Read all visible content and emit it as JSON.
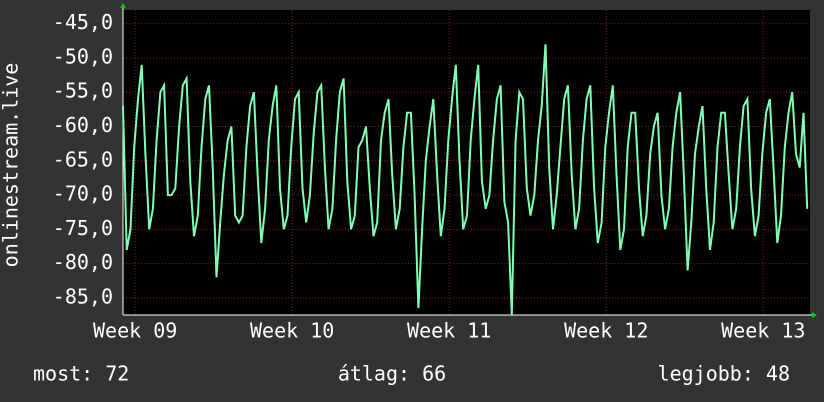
{
  "chart_data": {
    "type": "line",
    "y_label": "onlinestream.live",
    "x": [
      0,
      4,
      8,
      12,
      16,
      20,
      24,
      28,
      32,
      36,
      40,
      44,
      48,
      52,
      56,
      60,
      64,
      68,
      72,
      76,
      80,
      84,
      88,
      92,
      96,
      100,
      104,
      108,
      112,
      116,
      120,
      124,
      128,
      132,
      136,
      140,
      144,
      148,
      152,
      156,
      160,
      164,
      168,
      172,
      176,
      180,
      184,
      188,
      192,
      196,
      200,
      204,
      208,
      212,
      216,
      220,
      224,
      228,
      232,
      236,
      240,
      244,
      248,
      252,
      256,
      260,
      264,
      268,
      272,
      276,
      280,
      284,
      288,
      292,
      296,
      300,
      304,
      308,
      312,
      316,
      320,
      324,
      328,
      332,
      336,
      340,
      344,
      348,
      352,
      356,
      360,
      364,
      368,
      372,
      376,
      380,
      384,
      388,
      392,
      396,
      400,
      404,
      408,
      412,
      416,
      420,
      424,
      428,
      432,
      436,
      440,
      444,
      448,
      452,
      456,
      460,
      464,
      468,
      472,
      476,
      480,
      484,
      488,
      492,
      496,
      500,
      504,
      508,
      512,
      516,
      520,
      524,
      528,
      532,
      536,
      540,
      544,
      548,
      552,
      556,
      560,
      564,
      568,
      572,
      576,
      580,
      584,
      588,
      592,
      596,
      600,
      604,
      608,
      612,
      616,
      620,
      624,
      628,
      632,
      636,
      640,
      644,
      648,
      652,
      656,
      660,
      664,
      668,
      672,
      676,
      680,
      684,
      688,
      692,
      696,
      700,
      704,
      708,
      712,
      716,
      720,
      724,
      728,
      732
    ],
    "values": [
      -57,
      -78,
      -75,
      -63,
      -56,
      -51,
      -64,
      -75,
      -72,
      -62,
      -55,
      -54,
      -70,
      -70,
      -69,
      -60,
      -54,
      -53,
      -68,
      -76,
      -73,
      -63,
      -56,
      -54,
      -66,
      -82,
      -74,
      -67,
      -62,
      -60,
      -73,
      -74,
      -73,
      -63,
      -57,
      -55,
      -67,
      -77,
      -72,
      -62,
      -57,
      -54,
      -69,
      -75,
      -73,
      -63,
      -56,
      -55,
      -69,
      -74,
      -70,
      -61,
      -55,
      -54,
      -66,
      -75,
      -72,
      -62,
      -55,
      -53,
      -68,
      -75,
      -73,
      -63,
      -62,
      -60,
      -69,
      -76,
      -74,
      -62,
      -58,
      -56,
      -67,
      -75,
      -72,
      -63,
      -58,
      -58,
      -70,
      -86.5,
      -75,
      -65,
      -60,
      -56,
      -67,
      -76,
      -72,
      -62,
      -56,
      -51,
      -65,
      -75,
      -73,
      -62,
      -56,
      -51,
      -68,
      -72,
      -70,
      -62,
      -56,
      -54,
      -71,
      -74,
      -87.5,
      -62,
      -55,
      -56,
      -69,
      -73,
      -70,
      -62,
      -57,
      -48,
      -66,
      -75,
      -70,
      -63,
      -56,
      -54,
      -67,
      -75,
      -72,
      -62,
      -56,
      -54,
      -69,
      -77,
      -74,
      -63,
      -58,
      -54,
      -67,
      -78,
      -75,
      -63,
      -58,
      -58,
      -69,
      -76,
      -73,
      -64,
      -60,
      -58,
      -70,
      -75,
      -72,
      -63,
      -58,
      -55,
      -67,
      -81,
      -74,
      -64,
      -60,
      -57,
      -69,
      -78,
      -74,
      -63,
      -58,
      -58,
      -67,
      -75,
      -72,
      -63,
      -57,
      -56,
      -69,
      -76,
      -73,
      -64,
      -58,
      -56,
      -66,
      -77,
      -73,
      -63,
      -58,
      -55,
      -64,
      -66,
      -58,
      -72
    ],
    "color": "#80ffb4",
    "xlim": [
      0,
      735
    ],
    "xticks": [
      {
        "value": 13,
        "label": "Week 09"
      },
      {
        "value": 181,
        "label": "Week 10"
      },
      {
        "value": 349,
        "label": "Week 11"
      },
      {
        "value": 517,
        "label": "Week 12"
      },
      {
        "value": 685,
        "label": "Week 13"
      }
    ],
    "ylim": [
      -87.5,
      -43
    ],
    "yticks": [
      {
        "value": -45,
        "label": "-45,0"
      },
      {
        "value": -50,
        "label": "-50,0"
      },
      {
        "value": -55,
        "label": "-55,0"
      },
      {
        "value": -60,
        "label": "-60,0"
      },
      {
        "value": -65,
        "label": "-65,0"
      },
      {
        "value": -70,
        "label": "-70,0"
      },
      {
        "value": -75,
        "label": "-75,0"
      },
      {
        "value": -80,
        "label": "-80,0"
      },
      {
        "value": -85,
        "label": "-85,0"
      }
    ],
    "grid": true,
    "stats": [
      "most: 72",
      "átlag: 66",
      "legjobb: 48"
    ]
  }
}
